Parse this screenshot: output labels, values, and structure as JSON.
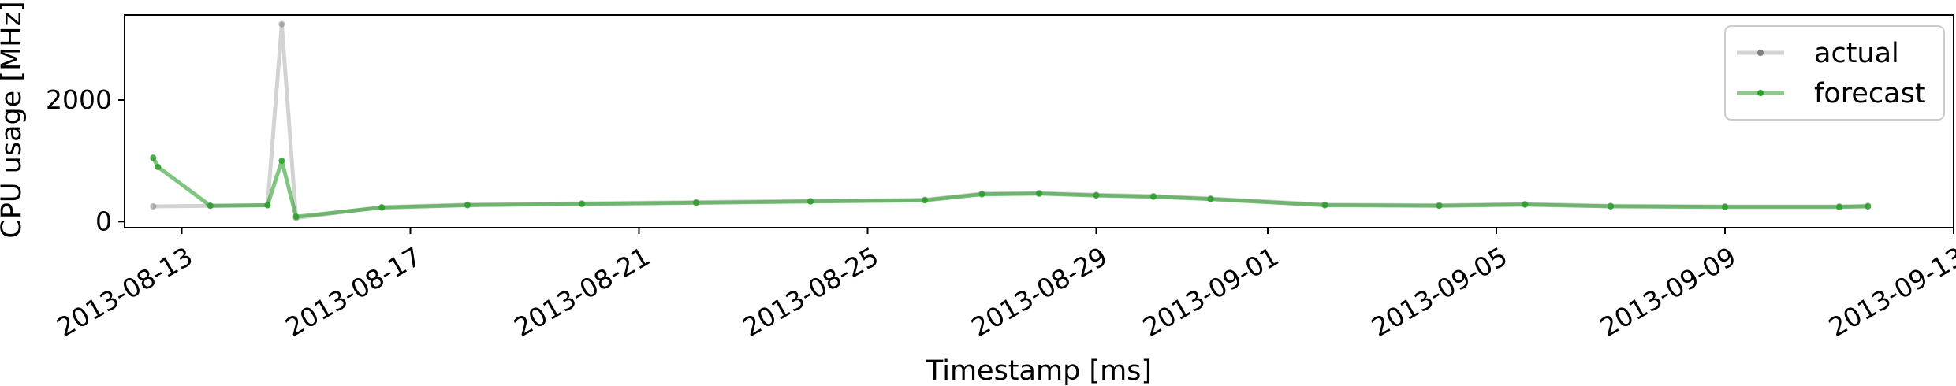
{
  "chart_data": {
    "type": "line",
    "title": "",
    "xlabel": "Timestamp [ms]",
    "ylabel": "CPU usage [MHz]",
    "x_range": [
      "2013-08-12",
      "2013-09-13"
    ],
    "ylim": [
      -100,
      3400
    ],
    "x_ticks": [
      "2013-08-13",
      "2013-08-17",
      "2013-08-21",
      "2013-08-25",
      "2013-08-29",
      "2013-09-01",
      "2013-09-05",
      "2013-09-09",
      "2013-09-13"
    ],
    "y_ticks": [
      0,
      2000
    ],
    "grid": false,
    "legend_position": "top-right",
    "series": [
      {
        "name": "actual",
        "color": "#808080",
        "x": [
          "2013-08-12T12:00",
          "2013-08-13T12:00",
          "2013-08-14T12:00",
          "2013-08-14T18:00",
          "2013-08-15T00:00",
          "2013-08-16T12:00",
          "2013-08-18T00:00",
          "2013-08-20T00:00",
          "2013-08-22T00:00",
          "2013-08-24T00:00",
          "2013-08-26T00:00",
          "2013-08-27T00:00",
          "2013-08-28T00:00",
          "2013-08-29T00:00",
          "2013-08-30T00:00",
          "2013-08-31T00:00",
          "2013-09-02T00:00",
          "2013-09-04T00:00",
          "2013-09-05T12:00",
          "2013-09-07T00:00",
          "2013-09-09T00:00",
          "2013-09-11T00:00",
          "2013-09-11T12:00"
        ],
        "y": [
          250,
          260,
          270,
          3250,
          60,
          240,
          280,
          300,
          320,
          340,
          360,
          460,
          470,
          440,
          420,
          380,
          280,
          270,
          290,
          260,
          250,
          250,
          260
        ]
      },
      {
        "name": "forecast",
        "color": "#2ca02c",
        "x": [
          "2013-08-12T12:00",
          "2013-08-12T14:00",
          "2013-08-13T12:00",
          "2013-08-14T12:00",
          "2013-08-14T18:00",
          "2013-08-15T00:00",
          "2013-08-16T12:00",
          "2013-08-18T00:00",
          "2013-08-20T00:00",
          "2013-08-22T00:00",
          "2013-08-24T00:00",
          "2013-08-26T00:00",
          "2013-08-27T00:00",
          "2013-08-28T00:00",
          "2013-08-29T00:00",
          "2013-08-30T00:00",
          "2013-08-31T00:00",
          "2013-09-02T00:00",
          "2013-09-04T00:00",
          "2013-09-05T12:00",
          "2013-09-07T00:00",
          "2013-09-09T00:00",
          "2013-09-11T00:00",
          "2013-09-11T12:00"
        ],
        "y": [
          1050,
          900,
          260,
          270,
          1000,
          80,
          230,
          270,
          290,
          310,
          330,
          350,
          450,
          460,
          430,
          410,
          370,
          270,
          260,
          280,
          250,
          240,
          240,
          250
        ]
      }
    ]
  }
}
